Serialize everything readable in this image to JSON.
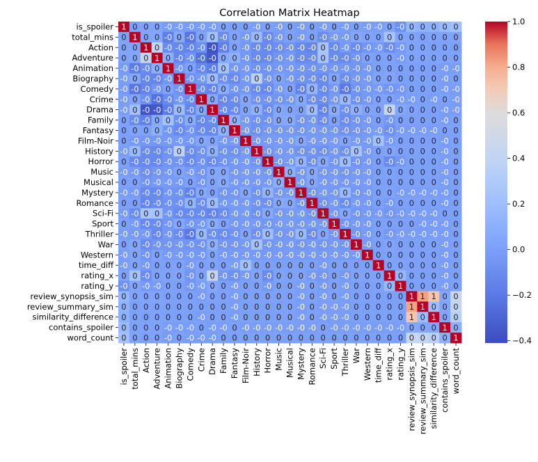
{
  "chart_data": {
    "type": "heatmap",
    "title": "Correlation Matrix Heatmap",
    "xlabel": "",
    "ylabel": "",
    "colormap": "coolwarm",
    "annotation_format": "rounded to 0 decimals",
    "color_range": [
      -0.41,
      1.0
    ],
    "colorbar": {
      "ticks": [
        1.0,
        0.8,
        0.6,
        0.4,
        0.2,
        0.0,
        -0.2,
        -0.4
      ],
      "tick_labels": [
        "1.0",
        "0.8",
        "0.6",
        "0.4",
        "0.2",
        "0.0",
        "−0.2",
        "−0.4"
      ],
      "low_color": "#3b4cc0",
      "mid_color": "#dddddd",
      "high_color": "#b40426"
    },
    "labels": [
      "is_spoiler",
      "total_mins",
      "Action",
      "Adventure",
      "Animation",
      "Biography",
      "Comedy",
      "Crime",
      "Drama",
      "Family",
      "Fantasy",
      "Film-Noir",
      "History",
      "Horror",
      "Music",
      "Musical",
      "Mystery",
      "Romance",
      "Sci-Fi",
      "Sport",
      "Thriller",
      "War",
      "Western",
      "time_diff",
      "rating_x",
      "rating_y",
      "review_synopsis_sim",
      "review_summary_sim",
      "similarity_difference",
      "contains_spoiler",
      "word_count"
    ],
    "values": [
      [
        1.0,
        0.02,
        0.03,
        0.03,
        -0.02,
        -0.01,
        -0.02,
        -0.01,
        -0.01,
        0.02,
        0.01,
        0.01,
        -0.01,
        0.01,
        -0.01,
        0.01,
        -0.01,
        0.01,
        -0.01,
        0.01,
        -0.01,
        0.01,
        -0.01,
        -0.01,
        0.02,
        -0.08,
        0.15,
        0.12,
        0.12,
        0.18,
        0.22
      ],
      [
        0.02,
        1.0,
        0.04,
        0.05,
        -0.18,
        0.06,
        -0.22,
        0.03,
        0.22,
        -0.1,
        0.03,
        -0.03,
        0.18,
        -0.12,
        -0.03,
        0.01,
        -0.02,
        0.01,
        -0.1,
        -0.02,
        -0.03,
        0.05,
        0.03,
        0.02,
        0.25,
        0.04,
        0.03,
        0.01,
        0.02,
        0.02,
        0.03
      ],
      [
        0.03,
        0.04,
        1.0,
        0.43,
        -0.1,
        -0.13,
        -0.14,
        -0.08,
        -0.38,
        -0.16,
        0.02,
        -0.04,
        -0.1,
        -0.11,
        -0.09,
        -0.06,
        -0.12,
        -0.14,
        0.26,
        -0.12,
        -0.02,
        -0.1,
        -0.05,
        -0.02,
        -0.1,
        -0.03,
        0.03,
        0.02,
        0.01,
        0.02,
        0.01
      ],
      [
        0.03,
        0.05,
        0.43,
        1.0,
        0.1,
        -0.14,
        -0.06,
        -0.24,
        -0.36,
        0.06,
        0.1,
        -0.04,
        -0.12,
        -0.12,
        -0.05,
        -0.03,
        -0.12,
        -0.1,
        0.24,
        -0.1,
        -0.12,
        -0.05,
        0.02,
        0.01,
        0.02,
        -0.02,
        0.03,
        0.02,
        0.02,
        0.02,
        0.02
      ],
      [
        -0.02,
        -0.18,
        -0.1,
        0.1,
        1.0,
        -0.05,
        0.02,
        -0.12,
        -0.18,
        0.23,
        -0.05,
        -0.03,
        -0.07,
        -0.06,
        -0.04,
        -0.03,
        -0.05,
        -0.07,
        -0.05,
        -0.05,
        -0.04,
        -0.06,
        -0.03,
        0.01,
        0.02,
        0.01,
        0.01,
        0.01,
        0.01,
        -0.01,
        -0.01
      ],
      [
        -0.01,
        0.06,
        -0.13,
        -0.14,
        -0.05,
        1.0,
        -0.07,
        -0.04,
        0.2,
        -0.08,
        -0.12,
        -0.03,
        0.38,
        -0.06,
        0.03,
        -0.03,
        -0.07,
        -0.08,
        -0.12,
        0.05,
        -0.1,
        -0.04,
        -0.03,
        0.02,
        0.04,
        0.01,
        0.01,
        0.01,
        0.01,
        -0.01,
        0.01
      ],
      [
        -0.02,
        -0.22,
        -0.14,
        -0.06,
        0.02,
        -0.07,
        1.0,
        -0.1,
        -0.14,
        0.08,
        -0.05,
        -0.04,
        -0.1,
        -0.12,
        -0.02,
        0.02,
        -0.15,
        0.14,
        -0.12,
        -0.04,
        -0.2,
        -0.06,
        -0.03,
        -0.02,
        -0.06,
        -0.04,
        0.01,
        0.01,
        0.01,
        -0.01,
        -0.01
      ],
      [
        -0.01,
        0.03,
        -0.08,
        -0.24,
        -0.12,
        -0.04,
        -0.1,
        1.0,
        0.06,
        -0.13,
        -0.1,
        0.05,
        -0.07,
        -0.06,
        -0.06,
        -0.04,
        0.06,
        -0.09,
        -0.1,
        -0.04,
        0.17,
        -0.07,
        -0.04,
        0.02,
        0.02,
        -0.01,
        -0.01,
        0.01,
        -0.01,
        0.01,
        -0.01
      ],
      [
        -0.01,
        0.22,
        -0.38,
        -0.36,
        -0.18,
        0.2,
        -0.14,
        0.06,
        1.0,
        -0.1,
        -0.12,
        0.04,
        0.12,
        -0.1,
        0.05,
        0.03,
        0.02,
        0.2,
        -0.15,
        0.08,
        -0.08,
        0.11,
        0.03,
        0.02,
        0.43,
        0.05,
        0.02,
        0.01,
        0.01,
        -0.01,
        -0.01
      ],
      [
        0.02,
        -0.1,
        -0.16,
        0.06,
        0.23,
        -0.08,
        0.08,
        -0.13,
        -0.1,
        1.0,
        0.12,
        -0.03,
        -0.07,
        -0.07,
        0.05,
        0.06,
        -0.06,
        -0.04,
        -0.1,
        0.02,
        -0.1,
        -0.05,
        -0.03,
        0.01,
        -0.05,
        0.01,
        0.01,
        0.01,
        0.01,
        -0.01,
        0.01
      ],
      [
        0.01,
        0.03,
        0.02,
        0.1,
        -0.05,
        -0.12,
        -0.05,
        -0.1,
        -0.12,
        0.12,
        1.0,
        -0.03,
        -0.08,
        -0.04,
        -0.04,
        -0.03,
        -0.05,
        -0.03,
        -0.04,
        -0.04,
        -0.07,
        -0.05,
        -0.03,
        -0.01,
        -0.08,
        -0.01,
        -0.01,
        -0.01,
        -0.01,
        0.01,
        0.01
      ],
      [
        0.01,
        -0.03,
        -0.04,
        -0.04,
        -0.03,
        -0.03,
        -0.04,
        0.05,
        0.04,
        -0.03,
        -0.03,
        1.0,
        -0.03,
        -0.03,
        -0.02,
        -0.02,
        0.05,
        -0.03,
        -0.03,
        -0.02,
        0.04,
        -0.03,
        -0.02,
        0.22,
        -0.02,
        0.01,
        0.01,
        0.01,
        0.01,
        -0.01,
        0.01
      ],
      [
        -0.01,
        0.18,
        -0.1,
        -0.12,
        -0.07,
        0.38,
        -0.1,
        -0.07,
        0.12,
        -0.07,
        -0.08,
        -0.03,
        1.0,
        -0.06,
        -0.03,
        -0.03,
        -0.07,
        -0.06,
        -0.08,
        -0.03,
        -0.08,
        0.24,
        -0.03,
        0.01,
        0.04,
        0.01,
        0.01,
        0.01,
        0.01,
        -0.01,
        0.01
      ],
      [
        0.01,
        -0.12,
        -0.11,
        -0.12,
        -0.06,
        -0.06,
        -0.12,
        -0.06,
        -0.1,
        -0.07,
        -0.04,
        -0.03,
        -0.06,
        1.0,
        -0.04,
        -0.03,
        0.14,
        -0.08,
        0.06,
        -0.05,
        0.2,
        -0.06,
        -0.03,
        0.01,
        -0.12,
        -0.04,
        0.01,
        0.01,
        0.01,
        -0.01,
        0.01
      ],
      [
        -0.01,
        -0.03,
        -0.09,
        -0.05,
        -0.04,
        0.03,
        -0.02,
        -0.06,
        0.05,
        0.05,
        -0.04,
        -0.02,
        -0.03,
        -0.04,
        1.0,
        0.1,
        -0.04,
        0.06,
        -0.04,
        -0.03,
        -0.05,
        -0.03,
        -0.02,
        0.01,
        0.02,
        0.01,
        0.01,
        0.01,
        0.01,
        -0.01,
        0.01
      ],
      [
        0.01,
        0.01,
        -0.06,
        -0.03,
        -0.03,
        -0.03,
        0.02,
        -0.04,
        0.03,
        0.06,
        -0.03,
        -0.02,
        -0.03,
        -0.03,
        0.1,
        1.0,
        -0.03,
        0.05,
        -0.03,
        -0.02,
        -0.04,
        -0.02,
        -0.02,
        0.01,
        0.01,
        0.01,
        0.01,
        0.01,
        0.01,
        -0.01,
        0.01
      ],
      [
        -0.01,
        -0.02,
        -0.12,
        -0.12,
        -0.05,
        -0.07,
        -0.15,
        0.06,
        0.02,
        -0.06,
        -0.05,
        0.05,
        -0.07,
        0.14,
        -0.04,
        -0.03,
        1.0,
        -0.06,
        -0.02,
        -0.04,
        0.17,
        -0.05,
        -0.03,
        0.01,
        0.02,
        -0.01,
        -0.01,
        -0.01,
        -0.01,
        -0.01,
        0.01
      ],
      [
        0.01,
        0.01,
        -0.14,
        -0.1,
        -0.07,
        -0.08,
        0.14,
        -0.09,
        0.2,
        -0.04,
        -0.03,
        -0.03,
        -0.06,
        -0.08,
        0.06,
        0.05,
        -0.06,
        1.0,
        -0.07,
        -0.03,
        -0.1,
        -0.02,
        -0.03,
        0.01,
        -0.03,
        0.01,
        0.01,
        0.01,
        0.01,
        -0.01,
        0.01
      ],
      [
        -0.01,
        -0.1,
        0.26,
        0.24,
        -0.05,
        -0.12,
        -0.12,
        -0.1,
        -0.15,
        -0.1,
        -0.04,
        -0.03,
        -0.08,
        0.06,
        -0.04,
        -0.03,
        -0.02,
        -0.07,
        1.0,
        -0.04,
        0.05,
        -0.05,
        -0.03,
        -0.02,
        -0.05,
        -0.03,
        -0.01,
        -0.01,
        -0.01,
        0.01,
        0.01
      ],
      [
        0.01,
        -0.02,
        -0.12,
        -0.1,
        -0.05,
        0.05,
        -0.04,
        -0.04,
        0.08,
        0.02,
        -0.04,
        -0.02,
        -0.03,
        -0.05,
        -0.03,
        -0.02,
        -0.04,
        -0.03,
        -0.04,
        1.0,
        -0.05,
        -0.03,
        -0.02,
        0.01,
        0.01,
        0.01,
        0.01,
        -0.01,
        -0.01,
        -0.01,
        0.01
      ],
      [
        -0.01,
        -0.03,
        -0.02,
        -0.12,
        -0.04,
        -0.1,
        -0.2,
        0.17,
        -0.08,
        -0.1,
        -0.07,
        0.04,
        -0.08,
        0.2,
        -0.05,
        -0.04,
        0.17,
        -0.1,
        0.05,
        -0.05,
        1.0,
        -0.05,
        -0.03,
        0.01,
        -0.04,
        -0.01,
        -0.01,
        -0.01,
        -0.01,
        -0.01,
        0.01
      ],
      [
        0.01,
        0.05,
        -0.1,
        -0.05,
        -0.06,
        -0.04,
        -0.06,
        -0.07,
        0.11,
        -0.05,
        -0.05,
        -0.03,
        0.24,
        -0.06,
        -0.03,
        -0.02,
        -0.05,
        -0.02,
        -0.05,
        -0.03,
        -0.05,
        1.0,
        -0.02,
        0.01,
        0.03,
        0.01,
        0.01,
        0.01,
        0.01,
        -0.01,
        0.01
      ],
      [
        -0.01,
        0.03,
        -0.05,
        0.02,
        -0.03,
        -0.03,
        -0.03,
        -0.04,
        0.03,
        -0.03,
        -0.03,
        -0.02,
        -0.03,
        -0.03,
        -0.02,
        -0.02,
        -0.03,
        -0.03,
        -0.03,
        -0.02,
        -0.03,
        -0.02,
        1.0,
        0.01,
        0.02,
        0.01,
        0.01,
        0.01,
        0.01,
        -0.01,
        0.01
      ],
      [
        -0.01,
        0.02,
        -0.02,
        0.01,
        0.01,
        0.02,
        -0.02,
        0.02,
        0.02,
        0.01,
        -0.01,
        0.22,
        0.01,
        0.01,
        0.01,
        0.01,
        0.01,
        0.01,
        -0.02,
        0.01,
        0.01,
        0.01,
        0.01,
        1.0,
        0.02,
        0.02,
        0.01,
        0.01,
        0.01,
        -0.01,
        0.01
      ],
      [
        0.02,
        0.25,
        -0.1,
        0.02,
        0.02,
        0.04,
        -0.06,
        0.02,
        0.43,
        -0.05,
        -0.08,
        -0.02,
        0.04,
        -0.12,
        0.02,
        0.01,
        0.02,
        -0.03,
        -0.05,
        0.01,
        -0.04,
        0.03,
        0.02,
        0.02,
        1.0,
        0.16,
        0.01,
        0.01,
        0.01,
        -0.01,
        0.01
      ],
      [
        -0.08,
        0.04,
        -0.03,
        -0.02,
        0.01,
        0.01,
        -0.04,
        -0.01,
        0.05,
        0.01,
        -0.01,
        0.01,
        0.01,
        -0.04,
        0.01,
        0.01,
        -0.01,
        0.01,
        -0.03,
        0.01,
        -0.01,
        0.01,
        0.01,
        0.02,
        0.16,
        1.0,
        0.01,
        0.01,
        0.01,
        -0.01,
        0.01
      ],
      [
        0.15,
        0.03,
        0.03,
        0.03,
        0.01,
        0.01,
        0.01,
        -0.01,
        0.02,
        0.01,
        -0.01,
        0.01,
        0.01,
        0.01,
        0.01,
        0.01,
        -0.01,
        0.01,
        -0.01,
        0.01,
        -0.01,
        0.01,
        0.01,
        0.01,
        0.01,
        0.01,
        1.0,
        0.82,
        0.72,
        0.05,
        0.45
      ],
      [
        0.12,
        0.01,
        0.02,
        0.02,
        0.01,
        0.01,
        0.01,
        0.01,
        0.01,
        0.01,
        -0.01,
        0.01,
        0.01,
        0.01,
        0.01,
        0.01,
        -0.01,
        0.01,
        -0.01,
        -0.01,
        -0.01,
        0.01,
        0.01,
        0.01,
        0.01,
        0.01,
        0.82,
        1.0,
        0.2,
        0.04,
        0.42
      ],
      [
        0.12,
        0.02,
        0.01,
        0.02,
        0.01,
        0.01,
        0.01,
        -0.01,
        0.01,
        0.01,
        -0.01,
        0.01,
        0.01,
        0.01,
        0.01,
        0.01,
        -0.01,
        0.01,
        -0.01,
        -0.01,
        -0.01,
        0.01,
        0.01,
        0.01,
        0.01,
        0.01,
        0.72,
        0.2,
        1.0,
        0.04,
        0.36
      ],
      [
        0.18,
        0.02,
        0.02,
        0.02,
        -0.01,
        -0.01,
        -0.01,
        0.01,
        -0.01,
        -0.01,
        0.01,
        -0.01,
        -0.01,
        -0.01,
        -0.01,
        -0.01,
        -0.01,
        -0.01,
        0.01,
        -0.01,
        -0.01,
        -0.01,
        -0.01,
        -0.01,
        -0.01,
        -0.01,
        0.05,
        0.04,
        0.04,
        1.0,
        0.1
      ],
      [
        0.22,
        0.03,
        0.01,
        0.02,
        -0.01,
        0.01,
        -0.01,
        -0.01,
        -0.01,
        0.01,
        0.01,
        0.01,
        0.01,
        0.01,
        0.01,
        0.01,
        0.01,
        0.01,
        0.01,
        0.01,
        0.01,
        0.01,
        0.01,
        0.01,
        0.01,
        0.01,
        0.45,
        0.42,
        0.36,
        0.1,
        1.0
      ]
    ]
  }
}
